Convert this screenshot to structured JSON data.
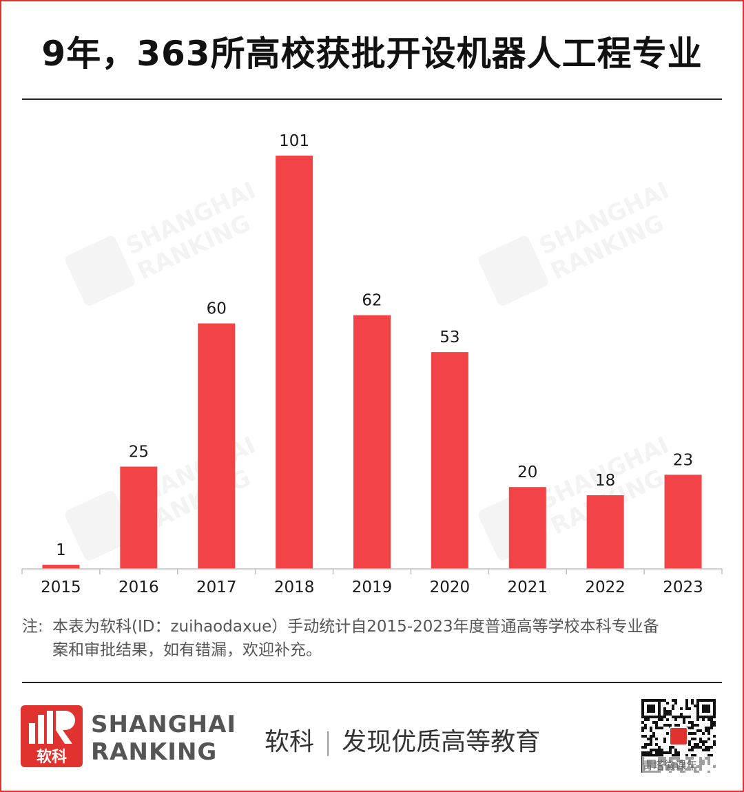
{
  "header": {
    "title": "9年，363所高校获批开设机器人工程专业"
  },
  "chart_data": {
    "type": "bar",
    "title": "9年，363所高校获批开设机器人工程专业",
    "categories": [
      "2015",
      "2016",
      "2017",
      "2018",
      "2019",
      "2020",
      "2021",
      "2022",
      "2023"
    ],
    "values": [
      1,
      25,
      60,
      101,
      62,
      53,
      20,
      18,
      23
    ],
    "xlabel": "",
    "ylabel": "",
    "ylim": [
      0,
      110
    ],
    "grid": false,
    "legend": "none",
    "bar_color": "#f24346"
  },
  "watermark": {
    "line1": "SHANGHAI",
    "line2": "RANKING",
    "cn": "软科"
  },
  "note": {
    "label": "注:",
    "line1": "本表为软科(ID：zuihaodaxue）手动统计自2015-2023年度普通高等学校本科专业备",
    "line2": "案和审批结果，如有错漏，欢迎补充。"
  },
  "footer": {
    "logo_text": "软科",
    "brand_line1": "SHANGHAI",
    "brand_line2": "RANKING",
    "slogan_left": "软科",
    "slogan_sep": "|",
    "slogan_right": "发现优质高等教育",
    "qr_caption": "青塔徽课年"
  },
  "colors": {
    "accent": "#e0322e",
    "bar": "#f24346",
    "text": "#1a1a1a"
  }
}
